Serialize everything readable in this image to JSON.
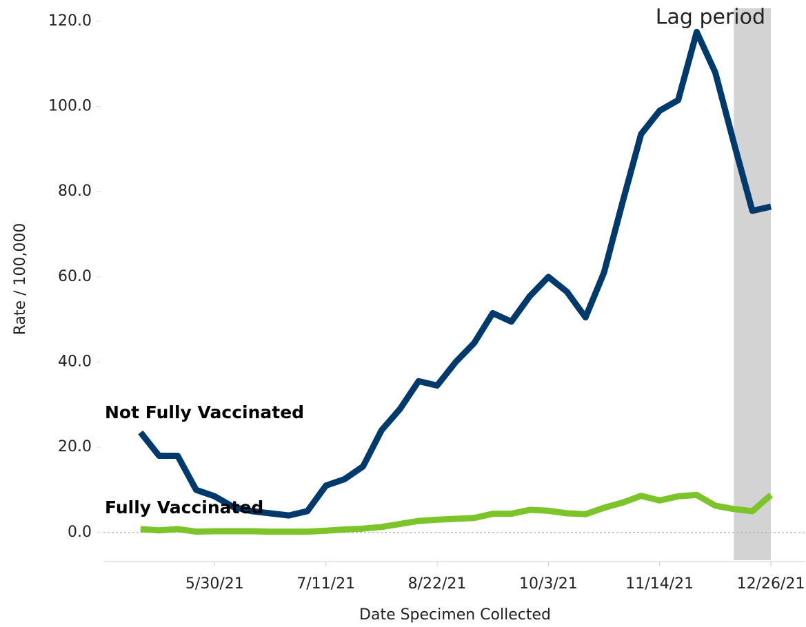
{
  "chart_data": {
    "type": "line",
    "x": [
      "5/2/21",
      "5/9/21",
      "5/16/21",
      "5/23/21",
      "5/30/21",
      "6/6/21",
      "6/13/21",
      "6/20/21",
      "6/27/21",
      "7/4/21",
      "7/11/21",
      "7/18/21",
      "7/25/21",
      "8/1/21",
      "8/8/21",
      "8/15/21",
      "8/22/21",
      "8/29/21",
      "9/5/21",
      "9/12/21",
      "9/19/21",
      "9/26/21",
      "10/3/21",
      "10/10/21",
      "10/17/21",
      "10/24/21",
      "10/31/21",
      "11/7/21",
      "11/14/21",
      "11/21/21",
      "11/28/21",
      "12/5/21",
      "12/12/21",
      "12/19/21",
      "12/26/21"
    ],
    "series": [
      {
        "name": "Not Fully Vaccinated",
        "color": "#003a6c",
        "values": [
          23.5,
          18,
          18,
          10,
          8.5,
          6,
          5,
          4.5,
          4,
          5,
          11,
          12.5,
          15.5,
          24,
          29,
          35.5,
          34.5,
          40,
          44.5,
          51.5,
          49.5,
          55.5,
          60,
          56.5,
          50.5,
          61,
          77.5,
          93.5,
          99,
          101.5,
          117.5,
          108,
          91.5,
          75.5,
          76.5
        ]
      },
      {
        "name": "Fully Vaccinated",
        "color": "#7dc42a",
        "values": [
          0.8,
          0.5,
          0.8,
          0.2,
          0.3,
          0.3,
          0.3,
          0.2,
          0.2,
          0.2,
          0.4,
          0.7,
          0.9,
          1.3,
          2,
          2.7,
          3,
          3.2,
          3.4,
          4.4,
          4.4,
          5.3,
          5.1,
          4.5,
          4.3,
          5.8,
          7,
          8.6,
          7.5,
          8.5,
          8.8,
          6.3,
          5.5,
          5,
          8.8
        ]
      }
    ],
    "xlabel": "Date Specimen Collected",
    "ylabel": "Rate / 100,000",
    "xlim": [
      "4/18/21",
      "1/8/22"
    ],
    "xticks": [
      "5/30/21",
      "7/11/21",
      "8/22/21",
      "10/3/21",
      "11/14/21",
      "12/26/21"
    ],
    "ylim": [
      -6.5,
      125
    ],
    "yticks": [
      {
        "value": 0,
        "label": "0.0"
      },
      {
        "value": 20,
        "label": "20.0"
      },
      {
        "value": 40,
        "label": "40.0"
      },
      {
        "value": 60,
        "label": "60.0"
      },
      {
        "value": 80,
        "label": "80.0"
      },
      {
        "value": 100,
        "label": "100.0"
      },
      {
        "value": 120,
        "label": "120.0"
      }
    ],
    "grid": false,
    "zero_line": true,
    "shade": {
      "x": [
        "12/12/21",
        "12/26/21"
      ],
      "label": "Lag period",
      "color": "#d3d3d3"
    }
  }
}
